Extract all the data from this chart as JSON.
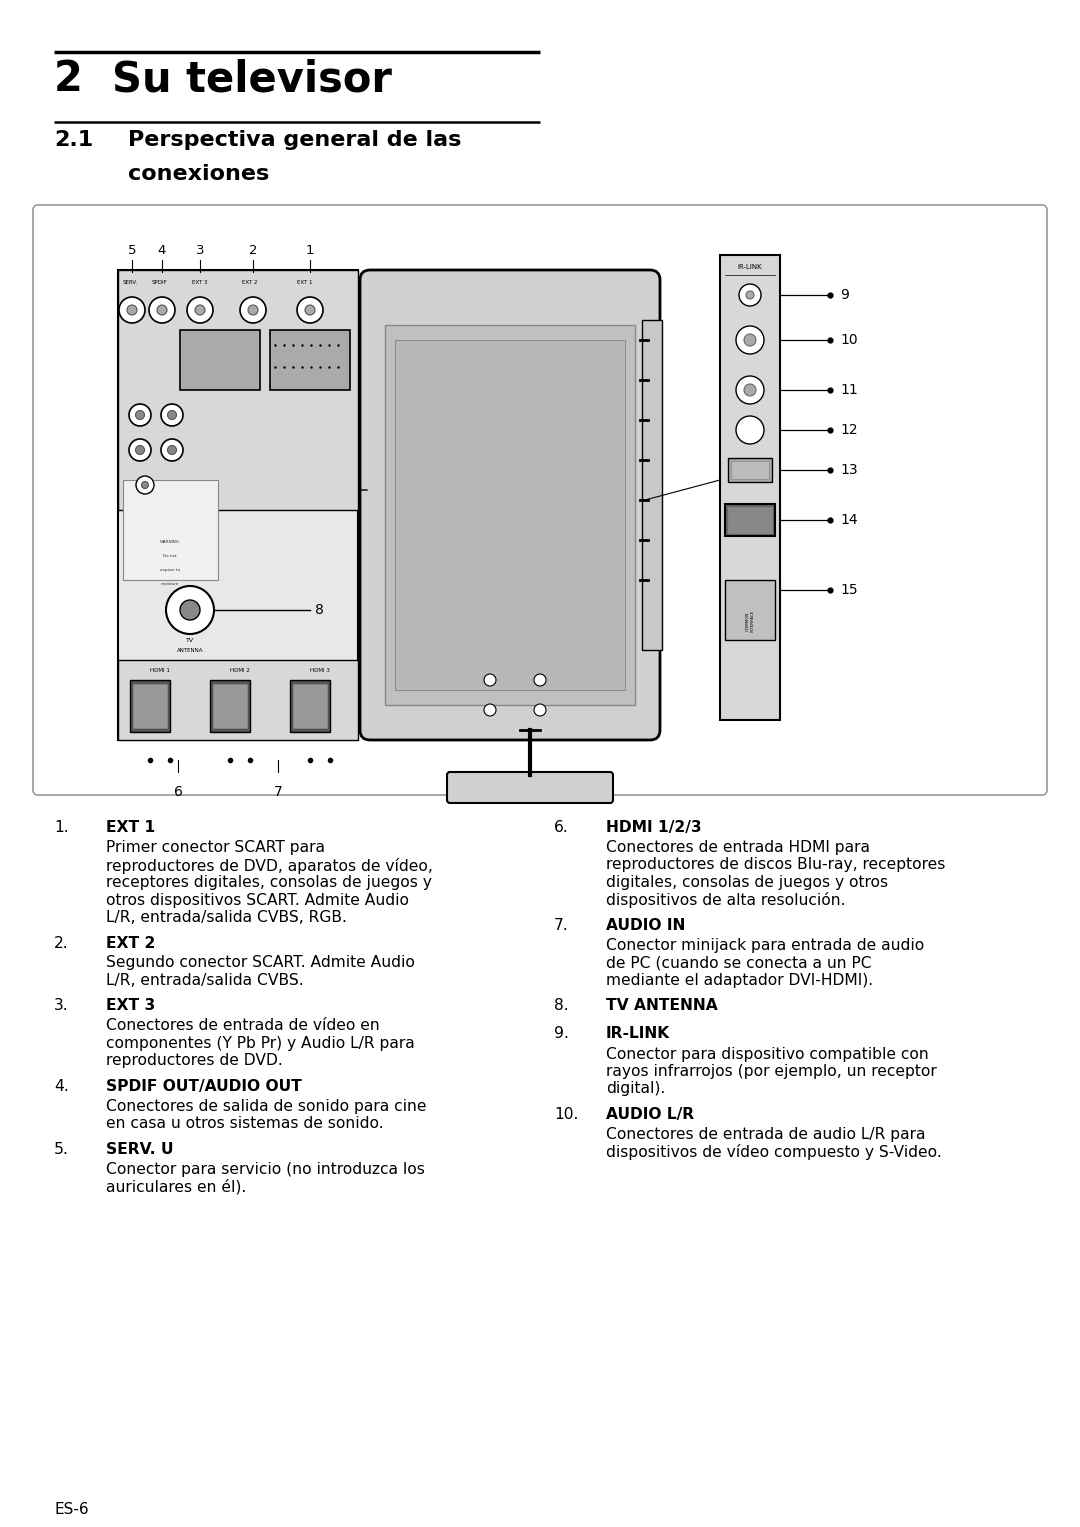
{
  "page_bg": "#ffffff",
  "chapter_num": "2",
  "chapter_title": "Su televisor",
  "section_num": "2.1",
  "section_title_line1": "Perspectiva general de las",
  "section_title_line2": "conexiones",
  "footer": "ES-6",
  "items_left": [
    {
      "num": "1.",
      "label": "EXT 1",
      "desc": [
        "Primer conector SCART para",
        "reproductores de DVD, aparatos de vídeo,",
        "receptores digitales, consolas de juegos y",
        "otros dispositivos SCART. Admite Audio",
        "L/R, entrada/salida CVBS, RGB."
      ]
    },
    {
      "num": "2.",
      "label": "EXT 2",
      "desc": [
        "Segundo conector SCART. Admite Audio",
        "L/R, entrada/salida CVBS."
      ]
    },
    {
      "num": "3.",
      "label": "EXT 3",
      "desc": [
        "Conectores de entrada de vídeo en",
        "componentes (Y Pb Pr) y Audio L/R para",
        "reproductores de DVD."
      ]
    },
    {
      "num": "4.",
      "label": "SPDIF OUT/AUDIO OUT",
      "desc": [
        "Conectores de salida de sonido para cine",
        "en casa u otros sistemas de sonido."
      ]
    },
    {
      "num": "5.",
      "label": "SERV. U",
      "desc": [
        "Conector para servicio (no introduzca los",
        "auriculares en él)."
      ]
    }
  ],
  "items_right": [
    {
      "num": "6.",
      "label": "HDMI 1/2/3",
      "desc": [
        "Conectores de entrada HDMI para",
        "reproductores de discos Blu-ray, receptores",
        "digitales, consolas de juegos y otros",
        "dispositivos de alta resolución."
      ]
    },
    {
      "num": "7.",
      "label": "AUDIO IN",
      "desc": [
        "Conector minijack para entrada de audio",
        "de PC (cuando se conecta a un PC",
        "mediante el adaptador DVI-HDMI)."
      ]
    },
    {
      "num": "8.",
      "label": "TV ANTENNA",
      "desc": []
    },
    {
      "num": "9.",
      "label": "IR-LINK",
      "desc": [
        "Conector para dispositivo compatible con",
        "rayos infrarrojos (por ejemplo, un receptor",
        "digital)."
      ]
    },
    {
      "num": "10.",
      "label": "AUDIO L/R",
      "desc": [
        "Conectores de entrada de audio L/R para",
        "dispositivos de vídeo compuesto y S-Video."
      ]
    }
  ]
}
